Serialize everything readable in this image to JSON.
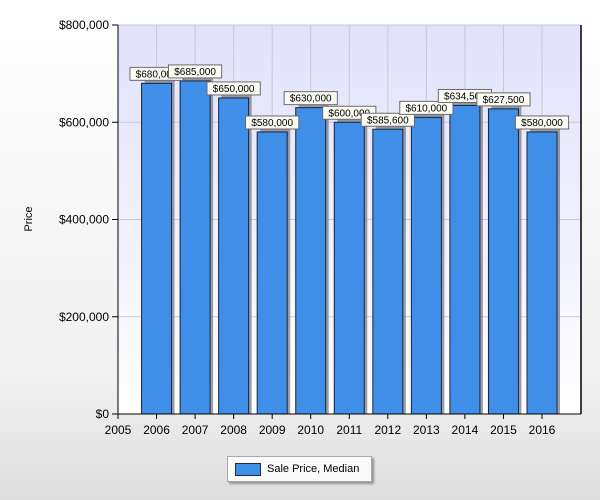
{
  "chart_data": {
    "type": "bar",
    "ylabel": "Price",
    "xlabel": "",
    "x_ticks": [
      "2005",
      "2006",
      "2007",
      "2008",
      "2009",
      "2010",
      "2011",
      "2012",
      "2013",
      "2014",
      "2015",
      "2016"
    ],
    "y_ticks": [
      "$0",
      "$200,000",
      "$400,000",
      "$600,000",
      "$800,000"
    ],
    "ylim": [
      0,
      800000
    ],
    "grid": true,
    "legend_position": "bottom-center",
    "series": [
      {
        "name": "Sale Price, Median",
        "color": "#3f8ee8",
        "categories": [
          "2006",
          "2007",
          "2008",
          "2009",
          "2010",
          "2011",
          "2012",
          "2013",
          "2014",
          "2015",
          "2016"
        ],
        "values": [
          680000,
          685000,
          650000,
          580000,
          630000,
          600000,
          585600,
          610000,
          634500,
          627500,
          580000
        ],
        "data_labels": [
          "$680,000",
          "$685,000",
          "$650,000",
          "$580,000",
          "$630,000",
          "$600,000",
          "$585,600",
          "$610,000",
          "$634,500",
          "$627,500",
          "$580,000"
        ]
      }
    ]
  }
}
